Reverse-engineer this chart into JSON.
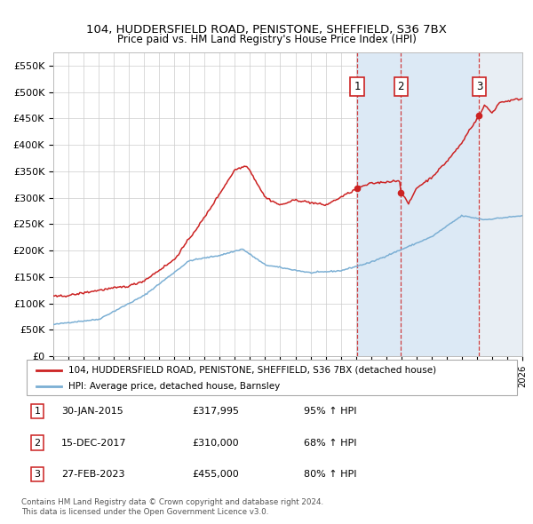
{
  "title1": "104, HUDDERSFIELD ROAD, PENISTONE, SHEFFIELD, S36 7BX",
  "title2": "Price paid vs. HM Land Registry's House Price Index (HPI)",
  "ylim": [
    0,
    575000
  ],
  "yticks": [
    0,
    50000,
    100000,
    150000,
    200000,
    250000,
    300000,
    350000,
    400000,
    450000,
    500000,
    550000
  ],
  "ytick_labels": [
    "£0",
    "£50K",
    "£100K",
    "£150K",
    "£200K",
    "£250K",
    "£300K",
    "£350K",
    "£400K",
    "£450K",
    "£500K",
    "£550K"
  ],
  "hpi_color": "#7bafd4",
  "price_color": "#cc2222",
  "bg_color": "#ffffff",
  "grid_color": "#cccccc",
  "legend_label_price": "104, HUDDERSFIELD ROAD, PENISTONE, SHEFFIELD, S36 7BX (detached house)",
  "legend_label_hpi": "HPI: Average price, detached house, Barnsley",
  "sales": [
    {
      "id": 1,
      "date": "30-JAN-2015",
      "year": 2015.08,
      "price": 317995,
      "pct": "95%",
      "dir": "↑"
    },
    {
      "id": 2,
      "date": "15-DEC-2017",
      "year": 2017.96,
      "price": 310000,
      "pct": "68%",
      "dir": "↑"
    },
    {
      "id": 3,
      "date": "27-FEB-2023",
      "year": 2023.15,
      "price": 455000,
      "pct": "80%",
      "dir": "↑"
    }
  ],
  "footnote1": "Contains HM Land Registry data © Crown copyright and database right 2024.",
  "footnote2": "This data is licensed under the Open Government Licence v3.0.",
  "xmin": 1995,
  "xmax": 2026,
  "shade_color": "#dce9f5",
  "hatch_color": "#c8d8e8"
}
